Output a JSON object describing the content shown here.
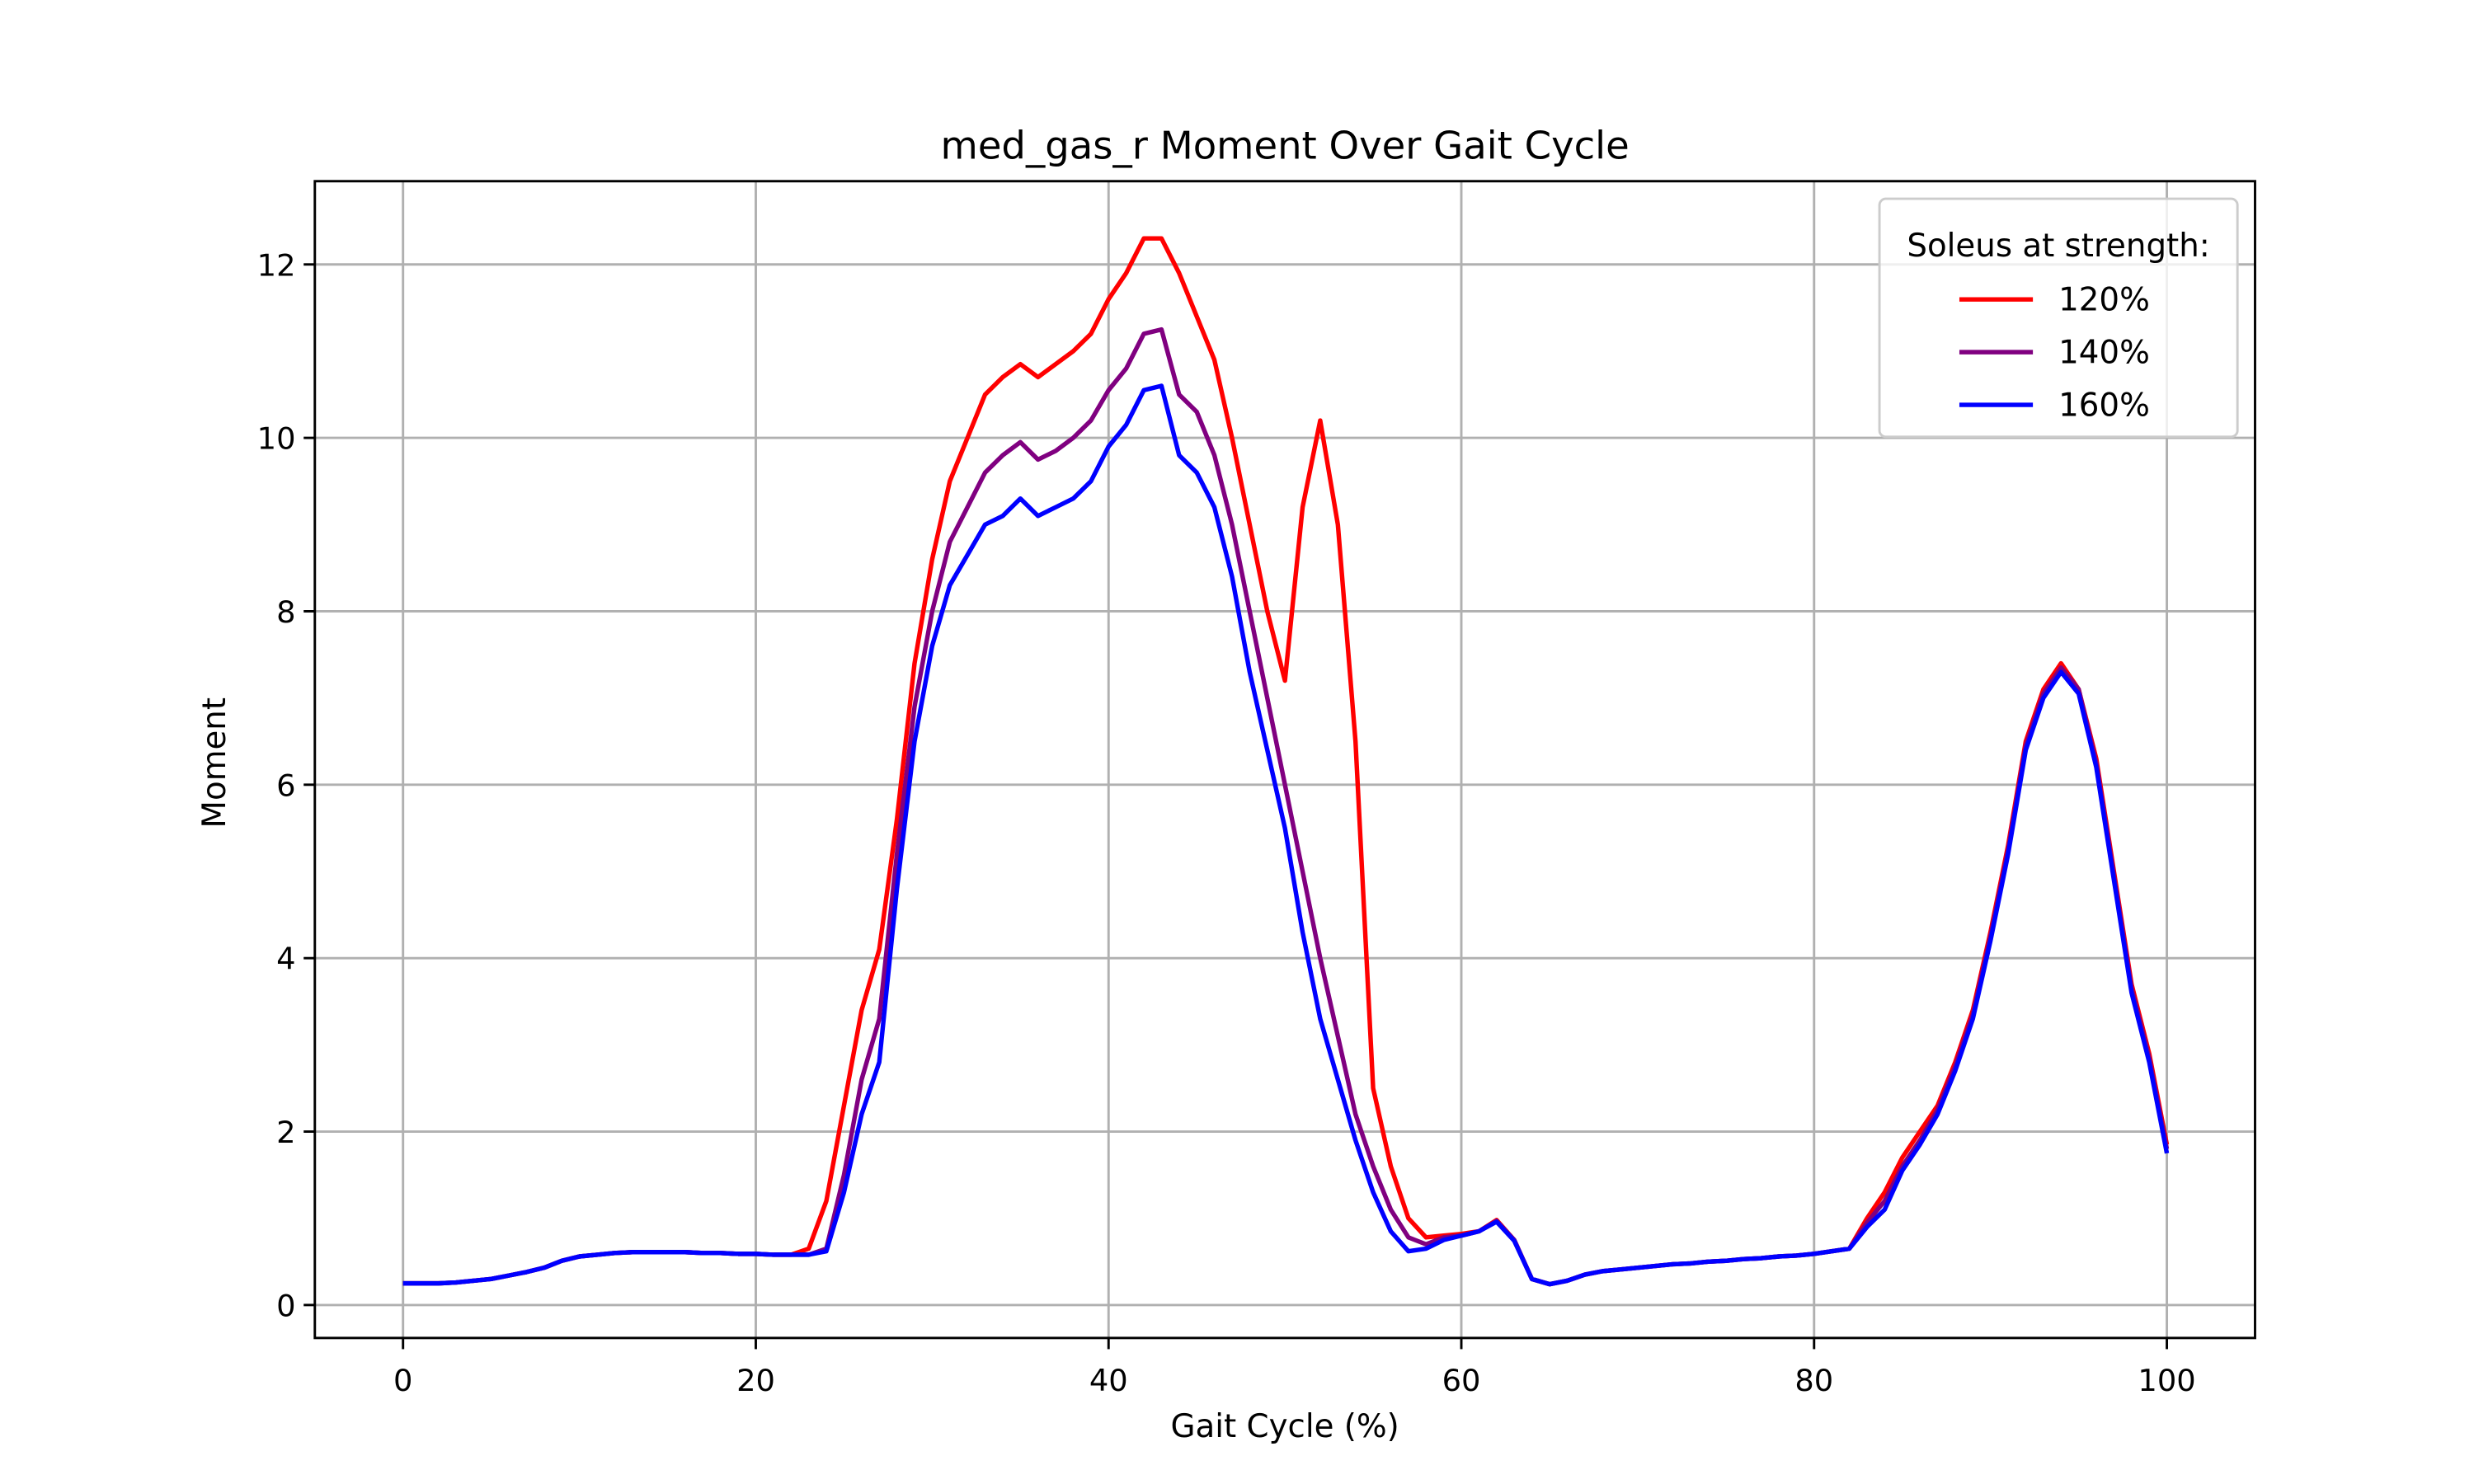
{
  "chart_data": {
    "type": "line",
    "title": "med_gas_r Moment Over Gait Cycle",
    "x_label": "Gait Cycle (%)",
    "y_label": "Moment",
    "legend_title": "Soleus at strength:",
    "legend": "upper right",
    "grid": true,
    "xlim": [
      -5,
      105
    ],
    "xticks": [
      0,
      20,
      40,
      60,
      80,
      100
    ],
    "ylim": [
      -0.38,
      12.96
    ],
    "yticks": [
      0,
      2,
      4,
      6,
      8,
      10,
      12
    ],
    "x": [
      0,
      1,
      2,
      3,
      4,
      5,
      6,
      7,
      8,
      9,
      10,
      11,
      12,
      13,
      14,
      15,
      16,
      17,
      18,
      19,
      20,
      21,
      22,
      23,
      24,
      25,
      26,
      27,
      28,
      29,
      30,
      31,
      32,
      33,
      34,
      35,
      36,
      37,
      38,
      39,
      40,
      41,
      42,
      43,
      44,
      45,
      46,
      47,
      48,
      49,
      50,
      51,
      52,
      53,
      54,
      55,
      56,
      57,
      58,
      59,
      60,
      61,
      62,
      63,
      64,
      65,
      66,
      67,
      68,
      69,
      70,
      71,
      72,
      73,
      74,
      75,
      76,
      77,
      78,
      79,
      80,
      81,
      82,
      83,
      84,
      85,
      86,
      87,
      88,
      89,
      90,
      91,
      92,
      93,
      94,
      95,
      96,
      97,
      98,
      99,
      100
    ],
    "series": [
      {
        "name": "120%",
        "color": "#ff0000",
        "values": [
          0.25,
          0.25,
          0.25,
          0.26,
          0.28,
          0.3,
          0.34,
          0.38,
          0.43,
          0.51,
          0.56,
          0.58,
          0.6,
          0.61,
          0.61,
          0.61,
          0.61,
          0.6,
          0.6,
          0.59,
          0.59,
          0.58,
          0.58,
          0.65,
          1.2,
          2.3,
          3.4,
          4.1,
          5.6,
          7.4,
          8.6,
          9.5,
          10.0,
          10.5,
          10.7,
          10.85,
          10.7,
          10.85,
          11.0,
          11.2,
          11.6,
          11.9,
          12.3,
          12.3,
          11.9,
          11.4,
          10.9,
          10.0,
          9.0,
          8.0,
          7.2,
          9.2,
          10.2,
          9.0,
          6.5,
          2.5,
          1.6,
          1.0,
          0.78,
          0.8,
          0.82,
          0.85,
          0.98,
          0.75,
          0.3,
          0.24,
          0.28,
          0.35,
          0.39,
          0.41,
          0.43,
          0.45,
          0.47,
          0.48,
          0.5,
          0.51,
          0.53,
          0.54,
          0.56,
          0.57,
          0.59,
          0.62,
          0.65,
          1.0,
          1.3,
          1.7,
          2.0,
          2.3,
          2.8,
          3.4,
          4.3,
          5.3,
          6.5,
          7.1,
          7.4,
          7.1,
          6.3,
          5.0,
          3.7,
          2.9,
          1.85
        ]
      },
      {
        "name": "140%",
        "color": "#800080",
        "values": [
          0.25,
          0.25,
          0.25,
          0.26,
          0.28,
          0.3,
          0.34,
          0.38,
          0.43,
          0.51,
          0.56,
          0.58,
          0.6,
          0.61,
          0.61,
          0.61,
          0.61,
          0.6,
          0.6,
          0.59,
          0.59,
          0.58,
          0.58,
          0.58,
          0.65,
          1.5,
          2.6,
          3.3,
          5.2,
          6.9,
          8.0,
          8.8,
          9.2,
          9.6,
          9.8,
          9.95,
          9.75,
          9.85,
          10.0,
          10.2,
          10.55,
          10.8,
          11.2,
          11.25,
          10.5,
          10.3,
          9.8,
          9.0,
          8.0,
          7.0,
          6.0,
          5.0,
          4.0,
          3.1,
          2.2,
          1.6,
          1.1,
          0.78,
          0.7,
          0.78,
          0.8,
          0.85,
          0.97,
          0.75,
          0.3,
          0.24,
          0.28,
          0.35,
          0.39,
          0.41,
          0.43,
          0.45,
          0.47,
          0.48,
          0.5,
          0.51,
          0.53,
          0.54,
          0.56,
          0.57,
          0.59,
          0.62,
          0.65,
          0.95,
          1.2,
          1.6,
          1.9,
          2.25,
          2.75,
          3.35,
          4.25,
          5.25,
          6.45,
          7.05,
          7.35,
          7.1,
          6.25,
          4.95,
          3.65,
          2.85,
          1.8
        ]
      },
      {
        "name": "160%",
        "color": "#0000ff",
        "values": [
          0.25,
          0.25,
          0.25,
          0.26,
          0.28,
          0.3,
          0.34,
          0.38,
          0.43,
          0.51,
          0.56,
          0.58,
          0.6,
          0.61,
          0.61,
          0.61,
          0.61,
          0.6,
          0.6,
          0.59,
          0.59,
          0.58,
          0.58,
          0.58,
          0.62,
          1.3,
          2.2,
          2.8,
          4.8,
          6.5,
          7.6,
          8.3,
          8.65,
          9.0,
          9.1,
          9.3,
          9.1,
          9.2,
          9.3,
          9.5,
          9.9,
          10.15,
          10.55,
          10.6,
          9.8,
          9.6,
          9.2,
          8.4,
          7.3,
          6.4,
          5.5,
          4.3,
          3.3,
          2.6,
          1.9,
          1.3,
          0.85,
          0.62,
          0.65,
          0.75,
          0.8,
          0.85,
          0.96,
          0.74,
          0.3,
          0.24,
          0.28,
          0.35,
          0.39,
          0.41,
          0.43,
          0.45,
          0.47,
          0.48,
          0.5,
          0.51,
          0.53,
          0.54,
          0.56,
          0.57,
          0.59,
          0.62,
          0.65,
          0.9,
          1.1,
          1.55,
          1.85,
          2.2,
          2.7,
          3.3,
          4.2,
          5.2,
          6.4,
          7.0,
          7.3,
          7.05,
          6.2,
          4.9,
          3.6,
          2.8,
          1.75
        ]
      }
    ]
  }
}
